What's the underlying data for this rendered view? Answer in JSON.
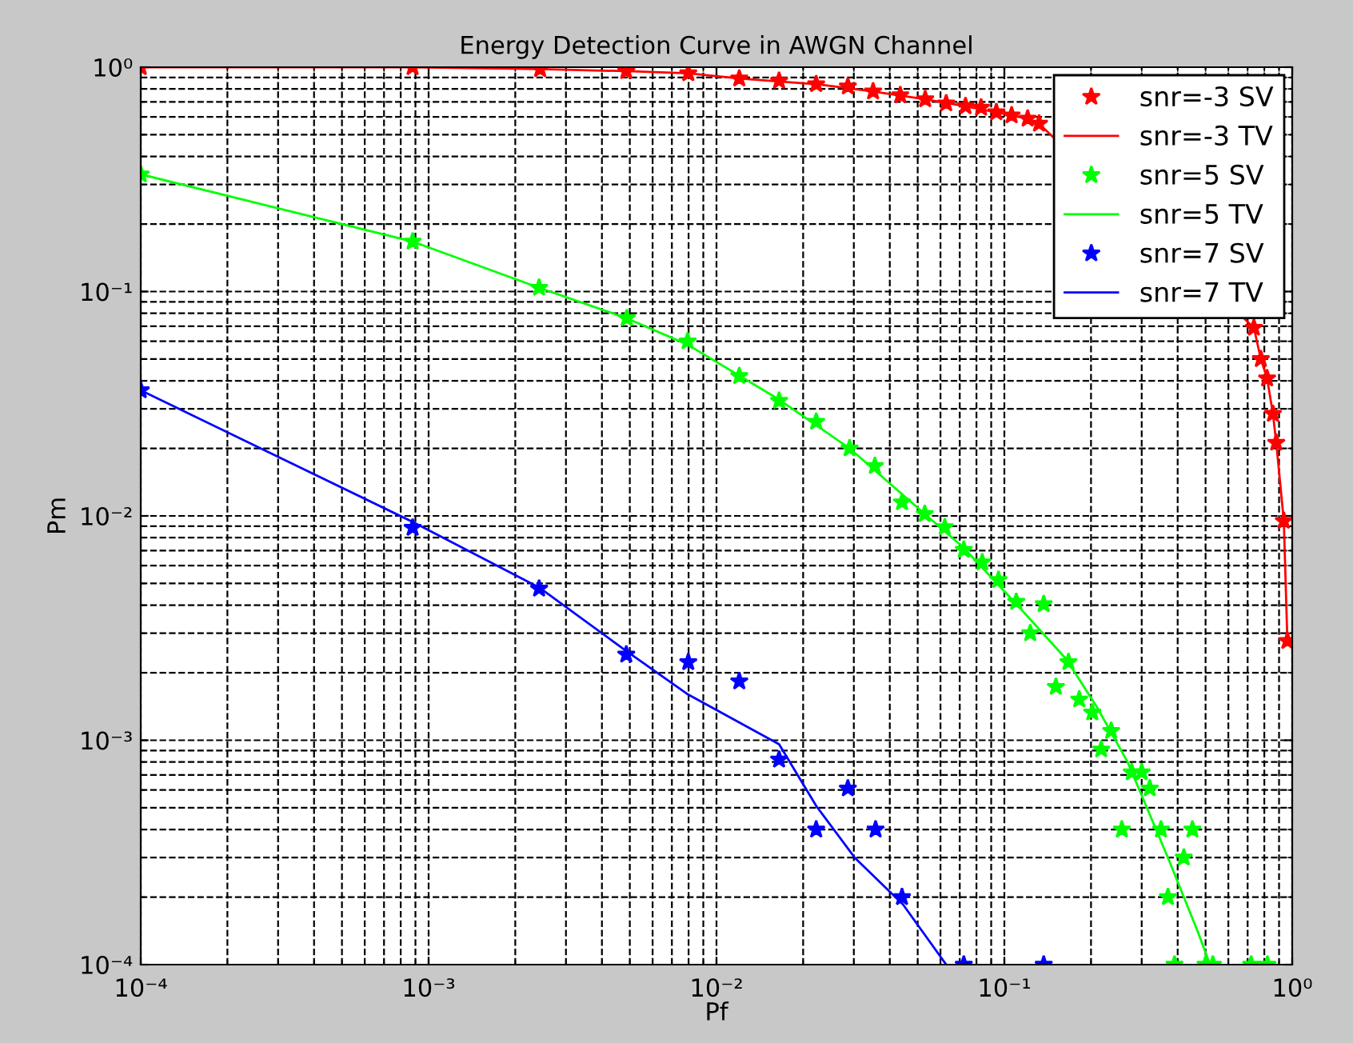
{
  "chart_data": {
    "type": "line",
    "title": "Energy Detection Curve in AWGN Channel",
    "xlabel": "Pf",
    "ylabel": "Pm",
    "log": "xy",
    "xlim": [
      0.0001,
      1
    ],
    "ylim": [
      0.0001,
      1
    ],
    "xticks": [
      {
        "value": 0.0001,
        "label": "10⁻⁴"
      },
      {
        "value": 0.001,
        "label": "10⁻³"
      },
      {
        "value": 0.01,
        "label": "10⁻²"
      },
      {
        "value": 0.1,
        "label": "10⁻¹"
      },
      {
        "value": 1,
        "label": "10⁰"
      }
    ],
    "yticks": [
      {
        "value": 0.0001,
        "label": "10⁻⁴"
      },
      {
        "value": 0.001,
        "label": "10⁻³"
      },
      {
        "value": 0.01,
        "label": "10⁻²"
      },
      {
        "value": 0.1,
        "label": "10⁻¹"
      },
      {
        "value": 1,
        "label": "10⁰"
      }
    ],
    "grid": true,
    "legend": "top right",
    "line_style": "dashed",
    "series": [
      {
        "name": "snr=-3 SV",
        "type": "scatter",
        "marker": "star",
        "color": "#ff0000",
        "x": [
          0.0001,
          0.00088,
          0.00244,
          0.00486,
          0.00798,
          0.012,
          0.0165,
          0.0222,
          0.0286,
          0.035,
          0.0435,
          0.0531,
          0.0628,
          0.0733,
          0.083,
          0.0938,
          0.106,
          0.1205,
          0.132,
          0.736,
          0.778,
          0.818,
          0.857,
          0.88,
          0.935,
          0.962
        ],
        "values": [
          1.0,
          1.0,
          0.98,
          0.96,
          0.94,
          0.89,
          0.87,
          0.84,
          0.82,
          0.78,
          0.75,
          0.72,
          0.69,
          0.67,
          0.66,
          0.63,
          0.61,
          0.59,
          0.56,
          0.069,
          0.05,
          0.041,
          0.0285,
          0.0212,
          0.0095,
          0.00277
        ]
      },
      {
        "name": "snr=-3 TV",
        "marker": "none",
        "line_style": "solid",
        "color": "#ff0000",
        "x": [
          0.0001,
          0.00088,
          0.00244,
          0.00486,
          0.00798,
          0.012,
          0.0222,
          0.035,
          0.0531,
          0.0733,
          0.0938,
          0.1205,
          0.132,
          0.736,
          0.778,
          0.818,
          0.857,
          0.88,
          0.935,
          0.962
        ],
        "values": [
          1.0,
          1.0,
          0.98,
          0.96,
          0.94,
          0.89,
          0.84,
          0.78,
          0.72,
          0.67,
          0.63,
          0.59,
          0.56,
          0.069,
          0.05,
          0.041,
          0.0285,
          0.0212,
          0.0095,
          0.00277
        ]
      },
      {
        "name": "snr=5 SV",
        "type": "scatter",
        "marker": "star",
        "color": "#00ff00",
        "x": [
          0.0001,
          0.00088,
          0.00242,
          0.00488,
          0.00794,
          0.012,
          0.0165,
          0.0222,
          0.029,
          0.0355,
          0.0441,
          0.0529,
          0.0621,
          0.0723,
          0.0838,
          0.0954,
          0.11,
          0.137,
          0.123,
          0.167,
          0.151,
          0.182,
          0.202,
          0.235,
          0.217,
          0.277,
          0.3,
          0.32,
          0.256,
          0.35,
          0.45,
          0.42,
          0.37,
          0.39,
          0.5,
          0.53,
          0.72,
          0.82
        ],
        "values": [
          0.333,
          0.167,
          0.104,
          0.076,
          0.06,
          0.042,
          0.0326,
          0.0263,
          0.02,
          0.0167,
          0.0115,
          0.0102,
          0.0089,
          0.00706,
          0.00621,
          0.00518,
          0.00414,
          0.00404,
          0.003,
          0.00223,
          0.00173,
          0.00152,
          0.00133,
          0.0011,
          0.00091,
          0.00072,
          0.00072,
          0.00061,
          0.0004,
          0.0004,
          0.0004,
          0.0003,
          0.0002,
          0.0001,
          0.0001,
          0.0001,
          0.0001,
          0.0001
        ]
      },
      {
        "name": "snr=5 TV",
        "marker": "none",
        "line_style": "solid",
        "color": "#00ff00",
        "x": [
          0.0001,
          0.00088,
          0.00242,
          0.00488,
          0.00794,
          0.0165,
          0.029,
          0.0441,
          0.0723,
          0.113,
          0.164,
          0.21,
          0.268,
          0.37,
          0.47,
          0.518
        ],
        "values": [
          0.333,
          0.167,
          0.104,
          0.076,
          0.058,
          0.033,
          0.02,
          0.0125,
          0.0072,
          0.0039,
          0.0023,
          0.0014,
          0.0008,
          0.0003,
          0.00014,
          0.0001
        ]
      },
      {
        "name": "snr=7 SV",
        "type": "scatter",
        "marker": "star",
        "color": "#0000ff",
        "x": [
          0.0001,
          0.00088,
          0.00242,
          0.00486,
          0.00798,
          0.012,
          0.0165,
          0.0286,
          0.0222,
          0.0357,
          0.0441,
          0.0723,
          0.137
        ],
        "values": [
          0.0363,
          0.00885,
          0.00474,
          0.00241,
          0.00223,
          0.00183,
          0.00082,
          0.00061,
          0.0004,
          0.0004,
          0.0002,
          0.0001,
          0.0001
        ]
      },
      {
        "name": "snr=7 TV",
        "marker": "none",
        "line_style": "solid",
        "color": "#0000ff",
        "x": [
          0.0001,
          0.00088,
          0.00242,
          0.00486,
          0.0079,
          0.0165,
          0.0222,
          0.0302,
          0.0445,
          0.0628
        ],
        "values": [
          0.0363,
          0.0094,
          0.0048,
          0.0025,
          0.00161,
          0.00096,
          0.00051,
          0.0003,
          0.000185,
          0.0001
        ]
      }
    ]
  }
}
